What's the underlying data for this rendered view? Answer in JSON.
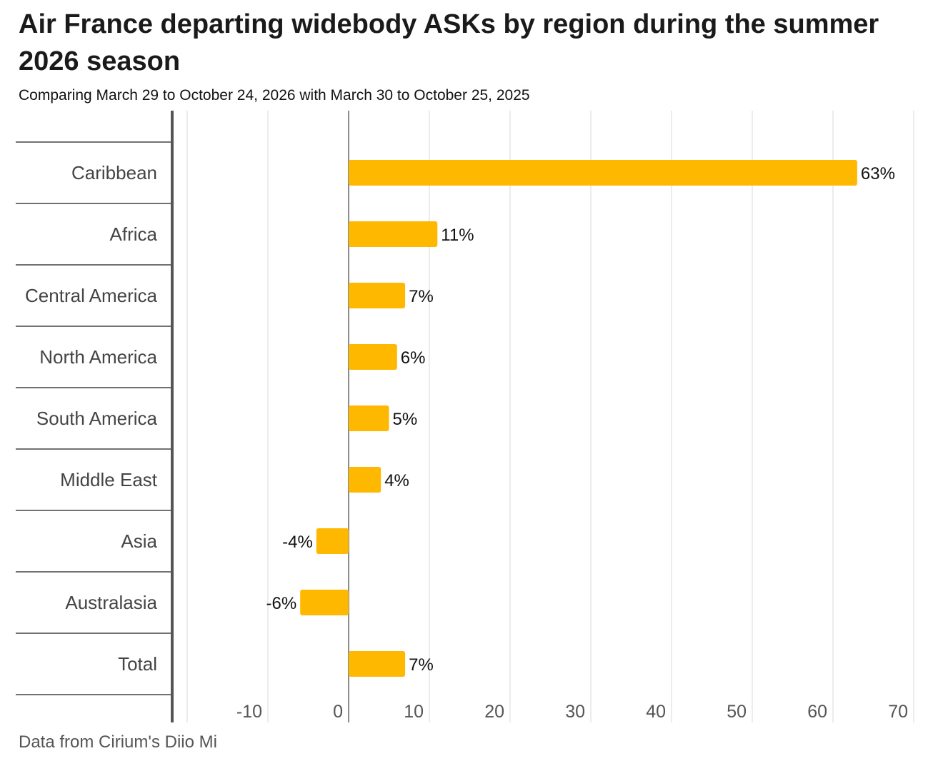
{
  "title": "Air France departing widebody ASKs by region during the summer 2026 season",
  "subtitle": "Comparing March 29 to October 24, 2026 with March 30 to October 25, 2025",
  "footer": "Data from Cirium's Diio Mi",
  "colors": {
    "bar": "#FFB800",
    "grid": "#e6e6e6",
    "axis": "#555555",
    "text": "#111111"
  },
  "chart_data": {
    "type": "bar",
    "orientation": "horizontal",
    "categories": [
      "Caribbean",
      "Africa",
      "Central America",
      "North America",
      "South America",
      "Middle East",
      "Asia",
      "Australasia",
      "Total"
    ],
    "values": [
      63,
      11,
      7,
      6,
      5,
      4,
      -4,
      -6,
      7
    ],
    "value_labels": [
      "63%",
      "11%",
      "7%",
      "6%",
      "5%",
      "4%",
      "-4%",
      "-6%",
      "7%"
    ],
    "x_ticks": [
      -10,
      0,
      10,
      20,
      30,
      40,
      50,
      60,
      70
    ],
    "xlim": [
      -20,
      70
    ],
    "grid": true
  }
}
